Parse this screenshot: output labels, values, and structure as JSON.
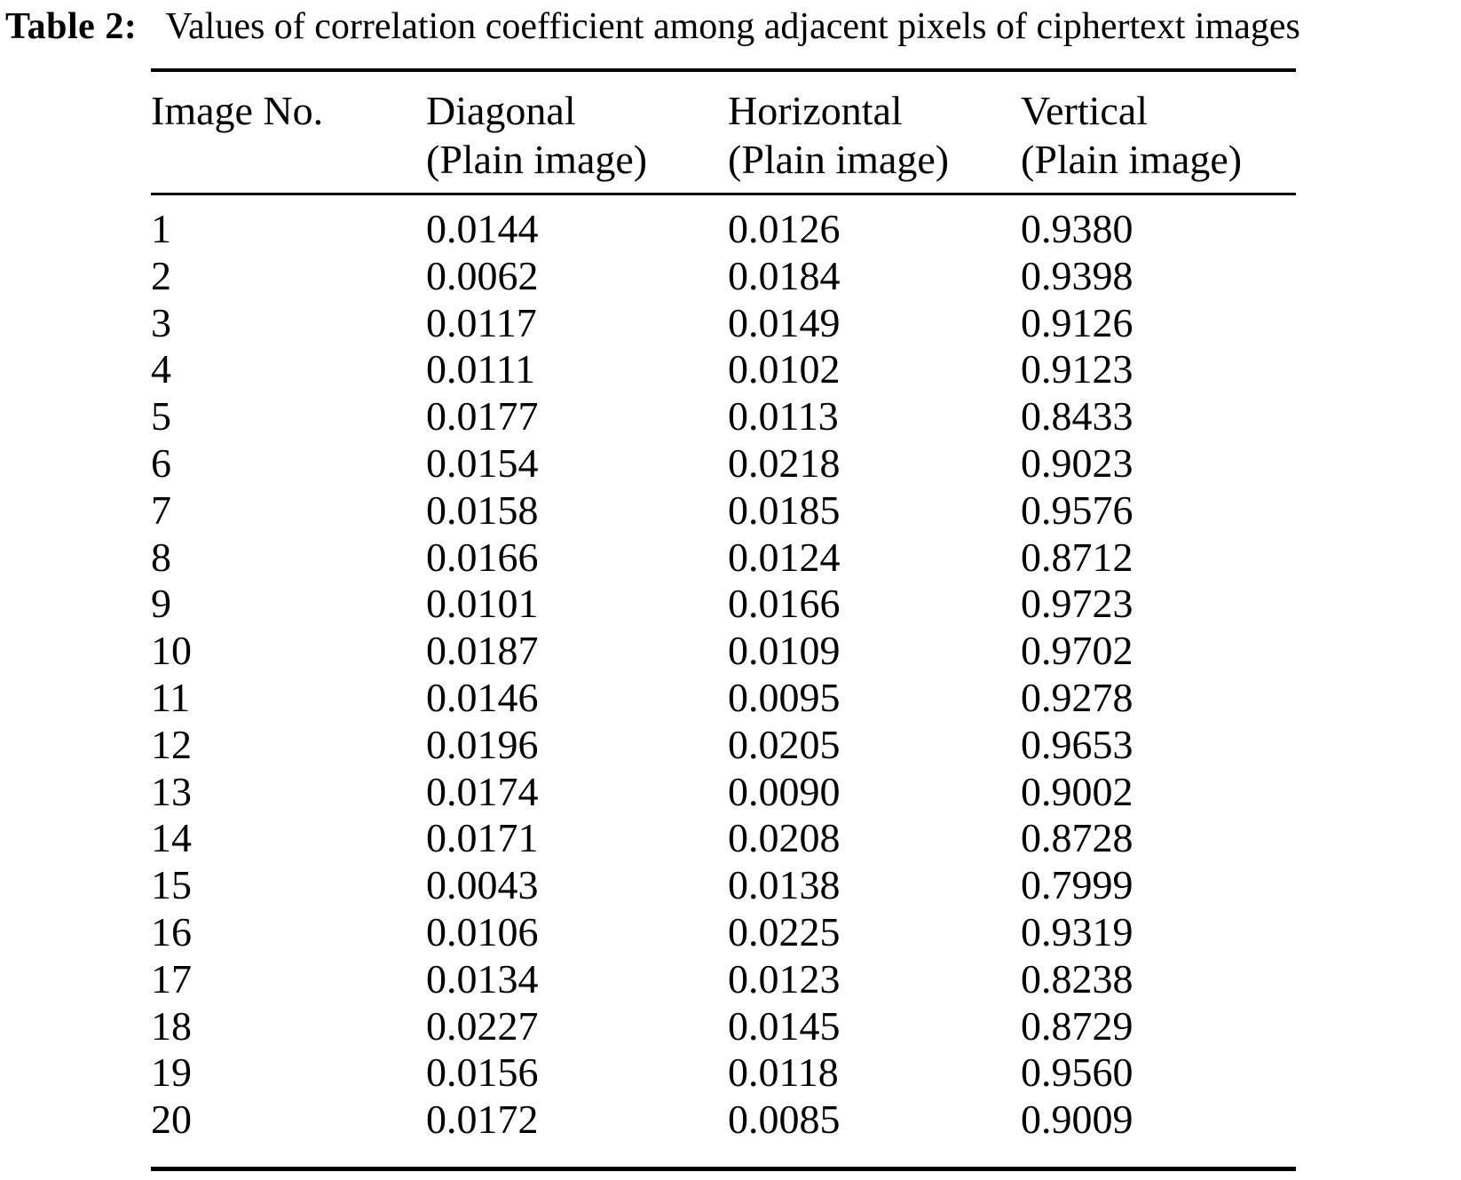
{
  "caption": {
    "label": "Table 2:",
    "text": "Values of correlation coefficient among adjacent pixels of ciphertext images"
  },
  "table": {
    "columns": [
      {
        "line1": "Image No.",
        "line2": ""
      },
      {
        "line1": "Diagonal",
        "line2": "(Plain image)"
      },
      {
        "line1": "Horizontal",
        "line2": "(Plain image)"
      },
      {
        "line1": "Vertical",
        "line2": "(Plain image)"
      }
    ],
    "rows": [
      [
        "1",
        "0.0144",
        "0.0126",
        "0.9380"
      ],
      [
        "2",
        "0.0062",
        "0.0184",
        "0.9398"
      ],
      [
        "3",
        "0.0117",
        "0.0149",
        "0.9126"
      ],
      [
        "4",
        "0.0111",
        "0.0102",
        "0.9123"
      ],
      [
        "5",
        "0.0177",
        "0.0113",
        "0.8433"
      ],
      [
        "6",
        "0.0154",
        "0.0218",
        "0.9023"
      ],
      [
        "7",
        "0.0158",
        "0.0185",
        "0.9576"
      ],
      [
        "8",
        "0.0166",
        "0.0124",
        "0.8712"
      ],
      [
        "9",
        "0.0101",
        "0.0166",
        "0.9723"
      ],
      [
        "10",
        "0.0187",
        "0.0109",
        "0.9702"
      ],
      [
        "11",
        "0.0146",
        "0.0095",
        "0.9278"
      ],
      [
        "12",
        "0.0196",
        "0.0205",
        "0.9653"
      ],
      [
        "13",
        "0.0174",
        "0.0090",
        "0.9002"
      ],
      [
        "14",
        "0.0171",
        "0.0208",
        "0.8728"
      ],
      [
        "15",
        "0.0043",
        "0.0138",
        "0.7999"
      ],
      [
        "16",
        "0.0106",
        "0.0225",
        "0.9319"
      ],
      [
        "17",
        "0.0134",
        "0.0123",
        "0.8238"
      ],
      [
        "18",
        "0.0227",
        "0.0145",
        "0.8729"
      ],
      [
        "19",
        "0.0156",
        "0.0118",
        "0.9560"
      ],
      [
        "20",
        "0.0172",
        "0.0085",
        "0.9009"
      ]
    ]
  },
  "chart_data": {
    "type": "table",
    "title": "Table 2: Values of correlation coefficient among adjacent pixels of ciphertext images",
    "columns": [
      "Image No.",
      "Diagonal (Plain image)",
      "Horizontal (Plain image)",
      "Vertical (Plain image)"
    ],
    "rows": [
      [
        1,
        0.0144,
        0.0126,
        0.938
      ],
      [
        2,
        0.0062,
        0.0184,
        0.9398
      ],
      [
        3,
        0.0117,
        0.0149,
        0.9126
      ],
      [
        4,
        0.0111,
        0.0102,
        0.9123
      ],
      [
        5,
        0.0177,
        0.0113,
        0.8433
      ],
      [
        6,
        0.0154,
        0.0218,
        0.9023
      ],
      [
        7,
        0.0158,
        0.0185,
        0.9576
      ],
      [
        8,
        0.0166,
        0.0124,
        0.8712
      ],
      [
        9,
        0.0101,
        0.0166,
        0.9723
      ],
      [
        10,
        0.0187,
        0.0109,
        0.9702
      ],
      [
        11,
        0.0146,
        0.0095,
        0.9278
      ],
      [
        12,
        0.0196,
        0.0205,
        0.9653
      ],
      [
        13,
        0.0174,
        0.009,
        0.9002
      ],
      [
        14,
        0.0171,
        0.0208,
        0.8728
      ],
      [
        15,
        0.0043,
        0.0138,
        0.7999
      ],
      [
        16,
        0.0106,
        0.0225,
        0.9319
      ],
      [
        17,
        0.0134,
        0.0123,
        0.8238
      ],
      [
        18,
        0.0227,
        0.0145,
        0.8729
      ],
      [
        19,
        0.0156,
        0.0118,
        0.956
      ],
      [
        20,
        0.0172,
        0.0085,
        0.9009
      ]
    ]
  }
}
